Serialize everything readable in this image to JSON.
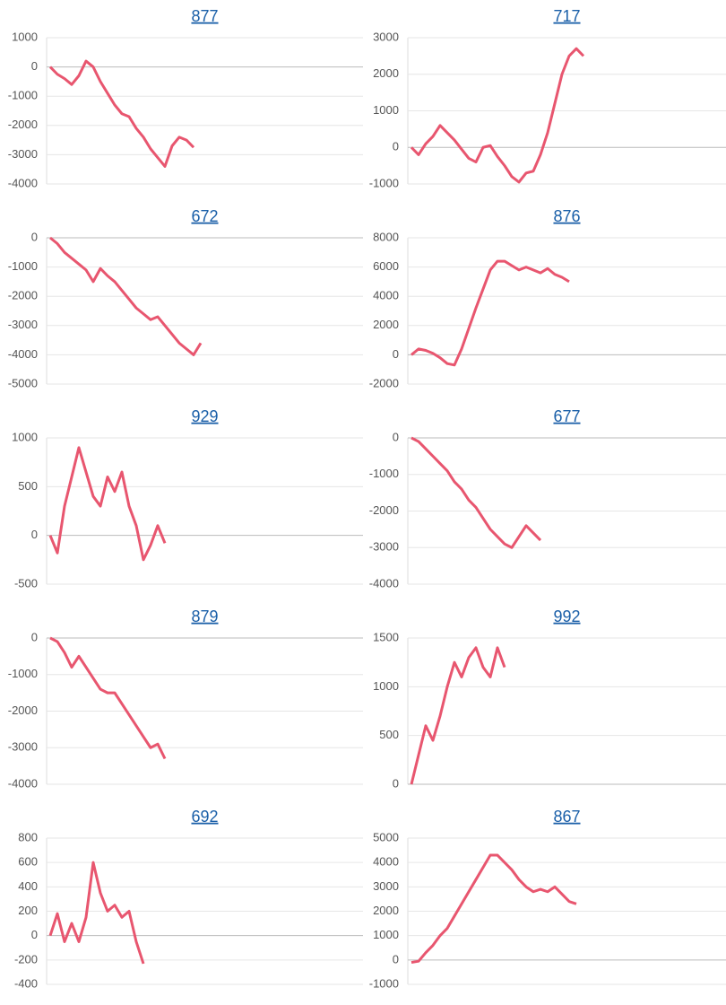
{
  "chart_data": [
    {
      "type": "line",
      "title": "877",
      "color": "#e8566f",
      "grid": true,
      "ylim": [
        -4000,
        1000
      ],
      "yticks": [
        -4000,
        -3000,
        -2000,
        -1000,
        0,
        1000
      ],
      "values": [
        0,
        -250,
        -400,
        -600,
        -300,
        200,
        0,
        -500,
        -900,
        -1300,
        -1600,
        -1700,
        -2100,
        -2400,
        -2800,
        -3100,
        -3400,
        -2700,
        -2400,
        -2500,
        -2750
      ]
    },
    {
      "type": "line",
      "title": "717",
      "color": "#e8566f",
      "grid": true,
      "ylim": [
        -1000,
        3000
      ],
      "yticks": [
        -1000,
        0,
        1000,
        2000,
        3000
      ],
      "values": [
        0,
        -200,
        100,
        300,
        600,
        400,
        200,
        -50,
        -300,
        -400,
        0,
        50,
        -250,
        -500,
        -800,
        -950,
        -700,
        -650,
        -200,
        400,
        1200,
        2000,
        2500,
        2700,
        2500
      ]
    },
    {
      "type": "line",
      "title": "672",
      "color": "#e8566f",
      "grid": true,
      "ylim": [
        -5000,
        0
      ],
      "yticks": [
        -5000,
        -4000,
        -3000,
        -2000,
        -1000,
        0
      ],
      "values": [
        0,
        -200,
        -500,
        -700,
        -900,
        -1100,
        -1500,
        -1050,
        -1300,
        -1500,
        -1800,
        -2100,
        -2400,
        -2600,
        -2800,
        -2700,
        -3000,
        -3300,
        -3600,
        -3800,
        -4000,
        -3600
      ]
    },
    {
      "type": "line",
      "title": "876",
      "color": "#e8566f",
      "grid": true,
      "ylim": [
        -2000,
        8000
      ],
      "yticks": [
        -2000,
        0,
        2000,
        4000,
        6000,
        8000
      ],
      "values": [
        0,
        400,
        300,
        100,
        -200,
        -600,
        -700,
        400,
        1800,
        3200,
        4500,
        5800,
        6400,
        6400,
        6100,
        5800,
        6000,
        5800,
        5600,
        5900,
        5500,
        5300,
        5000
      ]
    },
    {
      "type": "line",
      "title": "929",
      "color": "#e8566f",
      "grid": true,
      "ylim": [
        -500,
        1000
      ],
      "yticks": [
        -500,
        0,
        500,
        1000
      ],
      "values": [
        0,
        -180,
        300,
        600,
        900,
        650,
        400,
        300,
        600,
        450,
        650,
        300,
        100,
        -250,
        -100,
        100,
        -80
      ]
    },
    {
      "type": "line",
      "title": "677",
      "color": "#e8566f",
      "grid": true,
      "ylim": [
        -4000,
        0
      ],
      "yticks": [
        -4000,
        -3000,
        -2000,
        -1000,
        0
      ],
      "values": [
        0,
        -100,
        -300,
        -500,
        -700,
        -900,
        -1200,
        -1400,
        -1700,
        -1900,
        -2200,
        -2500,
        -2700,
        -2900,
        -3000,
        -2700,
        -2400,
        -2600,
        -2800
      ]
    },
    {
      "type": "line",
      "title": "879",
      "color": "#e8566f",
      "grid": true,
      "ylim": [
        -4000,
        0
      ],
      "yticks": [
        -4000,
        -3000,
        -2000,
        -1000,
        0
      ],
      "values": [
        0,
        -100,
        -400,
        -800,
        -500,
        -800,
        -1100,
        -1400,
        -1500,
        -1500,
        -1800,
        -2100,
        -2400,
        -2700,
        -3000,
        -2900,
        -3300
      ]
    },
    {
      "type": "line",
      "title": "992",
      "color": "#e8566f",
      "grid": true,
      "ylim": [
        0,
        1500
      ],
      "yticks": [
        0,
        500,
        1000,
        1500
      ],
      "values": [
        0,
        300,
        600,
        450,
        700,
        1000,
        1250,
        1100,
        1300,
        1400,
        1200,
        1100,
        1400,
        1200
      ]
    },
    {
      "type": "line",
      "title": "692",
      "color": "#e8566f",
      "grid": true,
      "ylim": [
        -400,
        800
      ],
      "yticks": [
        -400,
        -200,
        0,
        200,
        400,
        600,
        800
      ],
      "values": [
        0,
        180,
        -50,
        100,
        -50,
        150,
        600,
        350,
        200,
        250,
        150,
        200,
        -50,
        -230
      ]
    },
    {
      "type": "line",
      "title": "867",
      "color": "#e8566f",
      "grid": true,
      "ylim": [
        -1000,
        5000
      ],
      "yticks": [
        -1000,
        0,
        1000,
        2000,
        3000,
        4000,
        5000
      ],
      "values": [
        -100,
        -50,
        300,
        600,
        1000,
        1300,
        1800,
        2300,
        2800,
        3300,
        3800,
        4300,
        4300,
        4000,
        3700,
        3300,
        3000,
        2800,
        2900,
        2800,
        3000,
        2700,
        2400,
        2300
      ]
    }
  ]
}
